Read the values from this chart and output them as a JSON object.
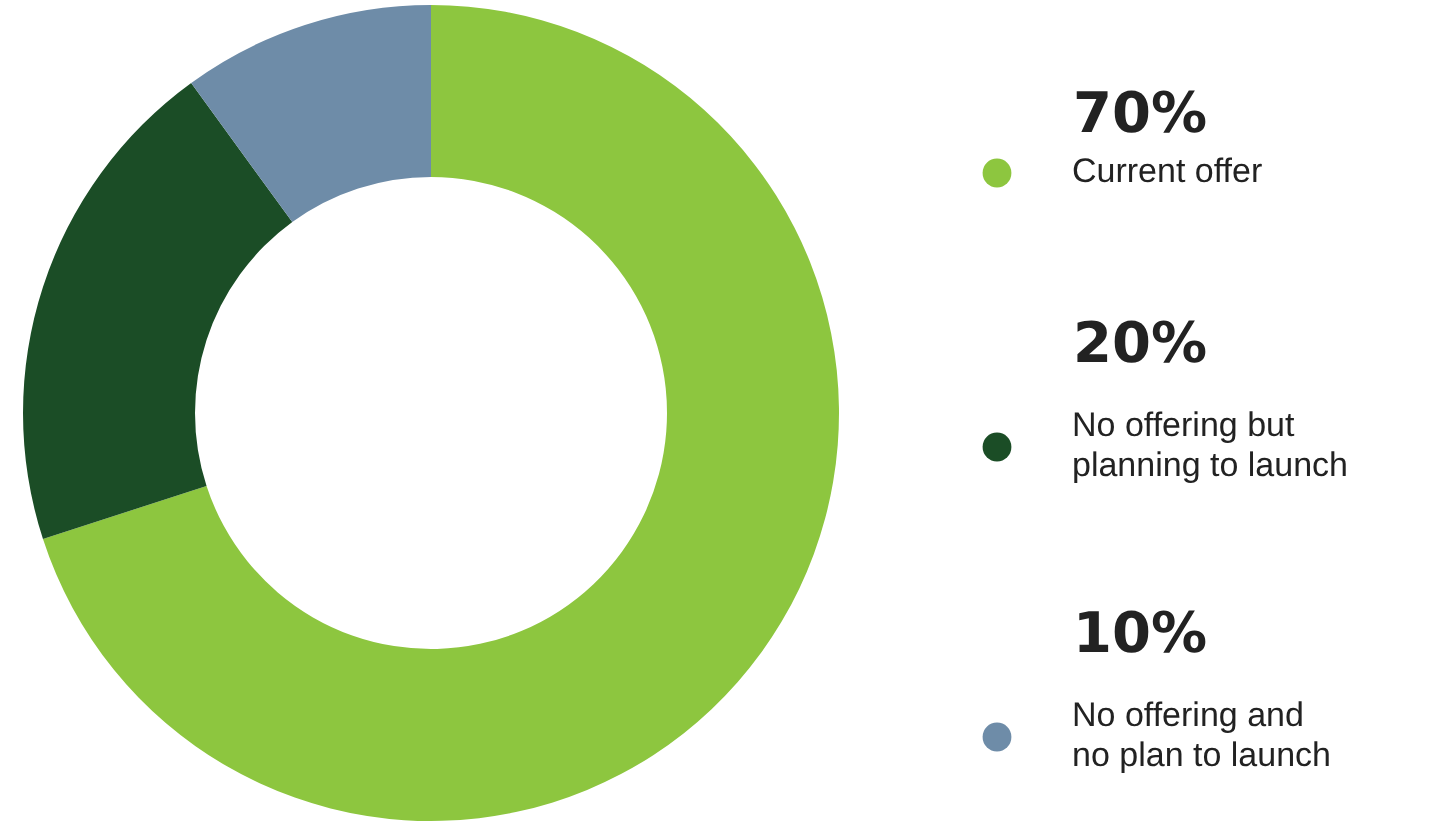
{
  "chart_data": {
    "type": "donut",
    "categories": [
      "Current offer",
      "No offering but planning to launch",
      "No offering and no plan to launch"
    ],
    "values": [
      70,
      20,
      10
    ],
    "value_labels": [
      "70%",
      "20%",
      "10%"
    ],
    "colors": [
      "#8dc63f",
      "#1b4d26",
      "#6e8ca8"
    ],
    "legend": "right"
  }
}
